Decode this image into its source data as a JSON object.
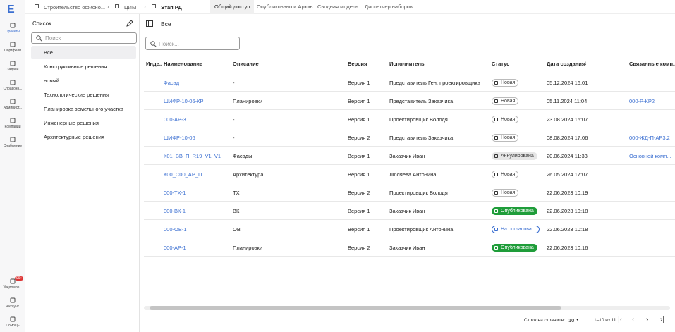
{
  "logo": "E",
  "nav": {
    "items": [
      "Проекты",
      "Портфели",
      "Задачи",
      "Справочн...",
      "Админист...",
      "Компании",
      "Снабжение"
    ],
    "bottom": [
      "Уведомле...",
      "Аккаунт",
      "Помощь"
    ],
    "badge": "99+"
  },
  "breadcrumb": [
    "Строительство офисно...",
    "ЦИМ",
    "Этап РД"
  ],
  "tabs": [
    "Общий доступ",
    "Опубликовано и Архив",
    "Сводная модель",
    "Диспетчер наборов"
  ],
  "list_panel": {
    "title": "Список",
    "search_placeholder": "Поиск",
    "items": [
      "Все",
      "Конструктивные решения",
      "новый",
      "Технологические решения",
      "Планировка земельного участка",
      "Инженерные решения",
      "Архитектурные решения"
    ]
  },
  "main": {
    "title": "Все",
    "search_placeholder": "Поиск...",
    "columns": [
      "Инде...",
      "Наименование",
      "Описание",
      "Версия",
      "Исполнитель",
      "Статус",
      "Дата создания",
      "Связанные комп..."
    ],
    "rows": [
      {
        "name": "Фасад",
        "description": "-",
        "version": "Версия 1",
        "executor": "Представитель Ген. проектировщика",
        "status": "Новая",
        "status_fill": "#ffffff",
        "status_text": "#333333",
        "created": "05.12.2024 16:01"
      },
      {
        "name": "ШИФР-10-06-КР",
        "description": "Планировки",
        "version": "Версия 1",
        "executor": "Представитель Заказчика",
        "status": "Новая",
        "status_fill": "#ffffff",
        "status_text": "#333333",
        "created": "05.11.2024 11:04",
        "related": "000-Р-КР2"
      },
      {
        "name": "000-АР-3",
        "description": "-",
        "version": "Версия 1",
        "executor": "Проектировщик Володя",
        "status": "Новая",
        "status_fill": "#ffffff",
        "status_text": "#333333",
        "created": "23.08.2024 15:07"
      },
      {
        "name": "ШИФР-10-06",
        "description": "-",
        "version": "Версия 2",
        "executor": "Представитель Заказчика",
        "status": "Новая",
        "status_fill": "#ffffff",
        "status_text": "#333333",
        "created": "08.08.2024 17:06",
        "related": "000-ЖД-П-АР3.2"
      },
      {
        "name": "К01_ВВ_П_R19_V1_V1",
        "description": "Фасады",
        "version": "Версия 1",
        "executor": "Заказчик Иван",
        "status": "Аннулирована",
        "status_fill": "#e6e6e6",
        "status_text": "#333333",
        "created": "20.06.2024 11:33",
        "related": "Основной комп..."
      },
      {
        "name": "К00_С00_АР_П",
        "description": "Архитектура",
        "version": "Версия 1",
        "executor": "Люляева Антонина",
        "status": "Новая",
        "status_fill": "#ffffff",
        "status_text": "#333333",
        "created": "26.05.2024 17:07"
      },
      {
        "name": "000-ТХ-1",
        "description": "ТХ",
        "version": "Версия 2",
        "executor": "Проектировщик Володя",
        "status": "Новая",
        "status_fill": "#ffffff",
        "status_text": "#333333",
        "created": "22.06.2023 10:19"
      },
      {
        "name": "000-ВК-1",
        "description": "ВК",
        "version": "Версия 1",
        "executor": "Заказчик Иван",
        "status": "Опубликована",
        "status_fill": "#1f9d3a",
        "status_text": "#ffffff",
        "created": "22.06.2023 10:18"
      },
      {
        "name": "000-ОВ-1",
        "description": "ОВ",
        "version": "Версия 1",
        "executor": "Проектировщик Антонина",
        "status": "На согласова...",
        "status_fill": "#ffffff",
        "status_text": "#3b6fd1",
        "created": "22.06.2023 10:18"
      },
      {
        "name": "000-АР-1",
        "description": "Планировки",
        "version": "Версия 2",
        "executor": "Заказчик Иван",
        "status": "Опубликована",
        "status_fill": "#1f9d3a",
        "status_text": "#ffffff",
        "created": "22.06.2023 10:16"
      }
    ]
  },
  "footer": {
    "rows_per_page_label": "Строк на странице:",
    "rows_per_page": "10",
    "range": "1–10 из 11"
  }
}
